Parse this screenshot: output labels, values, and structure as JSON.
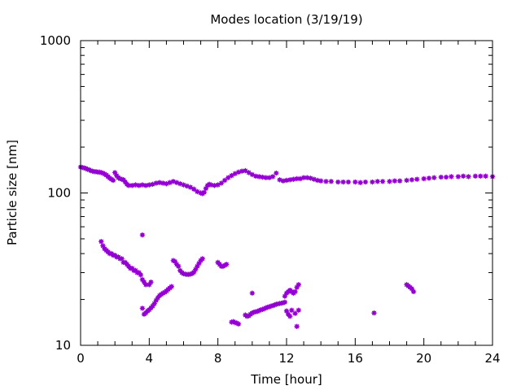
{
  "chart_data": {
    "type": "scatter",
    "title": "Modes location (3/19/19)",
    "xlabel": "Time [hour]",
    "ylabel": "Particle size [nm]",
    "xlim": [
      0,
      24
    ],
    "ylim": [
      10,
      1000
    ],
    "yscale": "log",
    "xticks": [
      0,
      4,
      8,
      12,
      16,
      20,
      24
    ],
    "xtick_labels": [
      "0",
      "4",
      "8",
      "12",
      "16",
      "20",
      "24"
    ],
    "yticks": [
      10,
      100,
      1000
    ],
    "ytick_labels": [
      "10",
      "100",
      "1000"
    ],
    "grid": false,
    "marker_color": "#9400d3",
    "series": [
      {
        "points": [
          [
            0.0,
            148
          ],
          [
            0.1,
            147
          ],
          [
            0.2,
            146
          ],
          [
            0.3,
            145
          ],
          [
            0.4,
            143
          ],
          [
            0.5,
            142
          ],
          [
            0.6,
            140
          ],
          [
            0.7,
            139
          ],
          [
            0.8,
            138
          ],
          [
            0.9,
            138
          ],
          [
            1.0,
            137
          ],
          [
            1.1,
            137
          ],
          [
            1.2,
            136
          ],
          [
            1.3,
            135
          ],
          [
            1.4,
            133
          ],
          [
            1.5,
            131
          ],
          [
            1.6,
            128
          ],
          [
            1.7,
            125
          ],
          [
            1.8,
            123
          ],
          [
            1.9,
            121
          ],
          [
            2.0,
            136
          ],
          [
            2.1,
            130
          ],
          [
            2.2,
            126
          ],
          [
            2.3,
            124
          ],
          [
            2.4,
            123
          ],
          [
            2.5,
            122
          ],
          [
            2.6,
            118
          ],
          [
            2.7,
            114
          ],
          [
            2.8,
            112
          ],
          [
            3.0,
            112
          ],
          [
            3.2,
            113
          ],
          [
            3.4,
            112
          ],
          [
            3.6,
            113
          ],
          [
            3.8,
            112
          ],
          [
            4.0,
            113
          ],
          [
            4.2,
            114
          ],
          [
            4.4,
            116
          ],
          [
            4.6,
            117
          ],
          [
            4.8,
            116
          ],
          [
            5.0,
            115
          ],
          [
            5.2,
            117
          ],
          [
            5.4,
            119
          ],
          [
            5.6,
            117
          ],
          [
            5.8,
            115
          ],
          [
            6.0,
            113
          ],
          [
            6.2,
            111
          ],
          [
            6.4,
            109
          ],
          [
            6.6,
            106
          ],
          [
            6.8,
            102
          ],
          [
            7.0,
            100
          ],
          [
            7.1,
            99
          ],
          [
            7.2,
            101
          ],
          [
            7.3,
            107
          ],
          [
            7.4,
            112
          ],
          [
            7.5,
            114
          ],
          [
            7.6,
            113
          ],
          [
            7.8,
            112
          ],
          [
            8.0,
            113
          ],
          [
            8.2,
            116
          ],
          [
            8.4,
            121
          ],
          [
            8.6,
            126
          ],
          [
            8.8,
            130
          ],
          [
            9.0,
            134
          ],
          [
            9.2,
            137
          ],
          [
            9.4,
            139
          ],
          [
            9.6,
            140
          ],
          [
            9.8,
            136
          ],
          [
            10.0,
            132
          ],
          [
            10.2,
            129
          ],
          [
            10.4,
            128
          ],
          [
            10.6,
            127
          ],
          [
            10.8,
            126
          ],
          [
            11.0,
            126
          ],
          [
            11.2,
            128
          ],
          [
            11.4,
            135
          ],
          [
            11.6,
            122
          ],
          [
            11.8,
            120
          ],
          [
            12.0,
            121
          ],
          [
            12.2,
            122
          ],
          [
            12.4,
            123
          ],
          [
            12.6,
            124
          ],
          [
            12.8,
            124
          ],
          [
            13.0,
            126
          ],
          [
            13.2,
            126
          ],
          [
            13.4,
            125
          ],
          [
            13.6,
            123
          ],
          [
            13.8,
            121
          ],
          [
            14.0,
            120
          ],
          [
            14.3,
            119
          ],
          [
            14.6,
            119
          ],
          [
            15.0,
            118
          ],
          [
            15.3,
            118
          ],
          [
            15.6,
            118
          ],
          [
            16.0,
            118
          ],
          [
            16.3,
            117
          ],
          [
            16.6,
            118
          ],
          [
            17.0,
            118
          ],
          [
            17.3,
            119
          ],
          [
            17.6,
            119
          ],
          [
            18.0,
            119
          ],
          [
            18.3,
            120
          ],
          [
            18.6,
            120
          ],
          [
            19.0,
            121
          ],
          [
            19.3,
            122
          ],
          [
            19.6,
            123
          ],
          [
            20.0,
            124
          ],
          [
            20.3,
            125
          ],
          [
            20.6,
            126
          ],
          [
            21.0,
            127
          ],
          [
            21.3,
            127
          ],
          [
            21.6,
            128
          ],
          [
            22.0,
            128
          ],
          [
            22.3,
            129
          ],
          [
            22.6,
            128
          ],
          [
            23.0,
            129
          ],
          [
            23.3,
            129
          ],
          [
            23.6,
            129
          ],
          [
            24.0,
            128
          ],
          [
            1.2,
            48
          ],
          [
            1.3,
            45
          ],
          [
            1.4,
            43
          ],
          [
            1.5,
            42
          ],
          [
            1.6,
            41
          ],
          [
            1.7,
            40
          ],
          [
            1.8,
            40
          ],
          [
            1.9,
            39
          ],
          [
            2.0,
            39
          ],
          [
            2.1,
            38
          ],
          [
            2.2,
            38
          ],
          [
            2.3,
            37
          ],
          [
            2.4,
            37
          ],
          [
            2.5,
            35
          ],
          [
            2.6,
            35
          ],
          [
            2.7,
            34
          ],
          [
            2.8,
            33
          ],
          [
            2.9,
            32
          ],
          [
            3.0,
            32
          ],
          [
            3.1,
            31
          ],
          [
            3.2,
            31
          ],
          [
            3.3,
            30
          ],
          [
            3.4,
            30
          ],
          [
            3.5,
            29
          ],
          [
            3.6,
            27
          ],
          [
            3.7,
            26
          ],
          [
            3.8,
            25
          ],
          [
            4.0,
            25
          ],
          [
            4.1,
            26
          ],
          [
            3.6,
            53
          ],
          [
            3.6,
            17.5
          ],
          [
            3.7,
            16.0
          ],
          [
            3.8,
            16.3
          ],
          [
            3.9,
            16.8
          ],
          [
            4.0,
            17.1
          ],
          [
            4.1,
            17.6
          ],
          [
            4.2,
            18.1
          ],
          [
            4.3,
            18.8
          ],
          [
            4.4,
            19.7
          ],
          [
            4.5,
            20.5
          ],
          [
            4.6,
            21.2
          ],
          [
            4.7,
            21.6
          ],
          [
            4.8,
            22.0
          ],
          [
            4.9,
            22.3
          ],
          [
            5.0,
            22.7
          ],
          [
            5.1,
            23.3
          ],
          [
            5.2,
            23.8
          ],
          [
            5.3,
            24.3
          ],
          [
            5.4,
            36
          ],
          [
            5.5,
            35.5
          ],
          [
            5.6,
            34
          ],
          [
            5.7,
            33
          ],
          [
            5.8,
            31
          ],
          [
            5.9,
            30
          ],
          [
            6.0,
            29.5
          ],
          [
            6.1,
            29.3
          ],
          [
            6.2,
            29.2
          ],
          [
            6.3,
            29.2
          ],
          [
            6.4,
            29.3
          ],
          [
            6.5,
            29.6
          ],
          [
            6.6,
            30.2
          ],
          [
            6.7,
            31.5
          ],
          [
            6.8,
            33
          ],
          [
            6.9,
            34.5
          ],
          [
            7.0,
            36
          ],
          [
            7.1,
            37
          ],
          [
            8.0,
            35
          ],
          [
            8.1,
            34
          ],
          [
            8.2,
            33
          ],
          [
            8.3,
            33
          ],
          [
            8.4,
            33.5
          ],
          [
            8.5,
            34
          ],
          [
            8.8,
            14.2
          ],
          [
            8.9,
            14.3
          ],
          [
            9.0,
            14.1
          ],
          [
            9.1,
            14.0
          ],
          [
            9.2,
            13.8
          ],
          [
            9.6,
            15.8
          ],
          [
            9.7,
            15.5
          ],
          [
            9.8,
            15.6
          ],
          [
            9.9,
            16.0
          ],
          [
            10.0,
            16.3
          ],
          [
            10.1,
            16.5
          ],
          [
            10.2,
            16.6
          ],
          [
            10.3,
            16.7
          ],
          [
            10.4,
            16.9
          ],
          [
            10.5,
            17.1
          ],
          [
            10.6,
            17.2
          ],
          [
            10.7,
            17.4
          ],
          [
            10.8,
            17.6
          ],
          [
            10.9,
            17.8
          ],
          [
            11.0,
            17.9
          ],
          [
            11.1,
            18.1
          ],
          [
            11.2,
            18.2
          ],
          [
            11.3,
            18.4
          ],
          [
            11.4,
            18.6
          ],
          [
            11.5,
            18.7
          ],
          [
            11.6,
            18.8
          ],
          [
            11.7,
            18.9
          ],
          [
            11.8,
            19.0
          ],
          [
            11.9,
            19.2
          ],
          [
            10.0,
            22
          ],
          [
            11.9,
            21
          ],
          [
            12.0,
            22
          ],
          [
            12.1,
            22.5
          ],
          [
            12.2,
            23
          ],
          [
            12.3,
            22.5
          ],
          [
            12.4,
            22
          ],
          [
            12.5,
            22.5
          ],
          [
            12.6,
            24
          ],
          [
            12.7,
            25
          ],
          [
            12.0,
            16.8
          ],
          [
            12.1,
            16.0
          ],
          [
            12.2,
            15.5
          ],
          [
            12.3,
            17.0
          ],
          [
            12.5,
            16.2
          ],
          [
            12.7,
            17.0
          ],
          [
            12.6,
            13.3
          ],
          [
            17.1,
            16.3
          ],
          [
            19.0,
            25
          ],
          [
            19.1,
            24.5
          ],
          [
            19.2,
            24
          ],
          [
            19.3,
            23.5
          ],
          [
            19.4,
            22.5
          ]
        ]
      }
    ]
  }
}
